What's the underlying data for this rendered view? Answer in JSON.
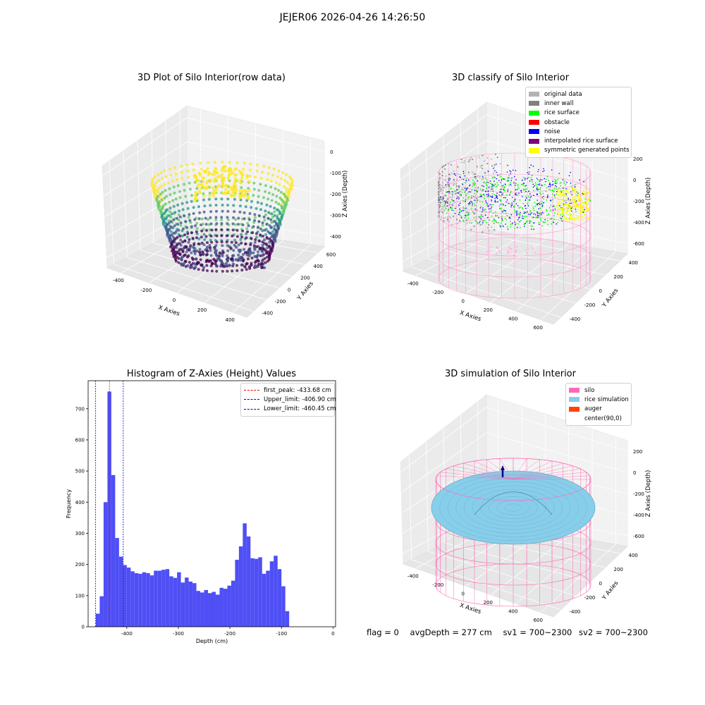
{
  "suptitle": "JEJER06 2026-04-26 14:26:50",
  "footer": {
    "flag": "flag = 0",
    "avg_depth": "avgDepth = 277 cm",
    "sv1": "sv1 = 700~2300",
    "sv2": "sv2 = 700~2300"
  },
  "chart_data": [
    {
      "type": "scatter",
      "title": "3D Plot of Silo Interior(row data)",
      "xlabel": "X Axies",
      "ylabel": "Y Axies",
      "zlabel": "Z Axies (Depth)",
      "x_ticks": [
        "-400",
        "-200",
        "0",
        "200",
        "400"
      ],
      "y_ticks": [
        "-400",
        "-200",
        "0",
        "200",
        "400",
        "600"
      ],
      "z_ticks": [
        "-400",
        "-300",
        "-200",
        "-100",
        "0"
      ],
      "colormap": "viridis",
      "colors": [
        "#440154",
        "#3b528b",
        "#21918c",
        "#5ec962",
        "#fde725"
      ]
    },
    {
      "type": "scatter",
      "title": "3D classify of Silo Interior",
      "xlabel": "X Axies",
      "ylabel": "Y Axies",
      "zlabel": "Z Axies (Depth)",
      "x_ticks": [
        "-400",
        "-200",
        "0",
        "200",
        "400",
        "600"
      ],
      "y_ticks": [
        "-400",
        "-200",
        "0",
        "200",
        "400"
      ],
      "z_ticks": [
        "-600",
        "-400",
        "-200",
        "0",
        "200"
      ],
      "legend": [
        {
          "label": "original data",
          "color": "#b4b4b4"
        },
        {
          "label": "inner wall",
          "color": "#808080"
        },
        {
          "label": "rice surface",
          "color": "#00ff00"
        },
        {
          "label": "obstacle",
          "color": "#ff0000"
        },
        {
          "label": "noise",
          "color": "#0000ff"
        },
        {
          "label": "interpolated rice surface",
          "color": "#800080"
        },
        {
          "label": "symmetric generated points",
          "color": "#ffff00"
        }
      ],
      "legend_position": "top-right"
    },
    {
      "type": "bar",
      "title": "Histogram of Z-Axies (Height) Values",
      "xlabel": "Depth (cm)",
      "ylabel": "Frequency",
      "x_ticks": [
        -400,
        -300,
        -200,
        -100,
        0
      ],
      "y_ticks": [
        0,
        100,
        200,
        300,
        400,
        500,
        600,
        700
      ],
      "xlim": [
        -475,
        5
      ],
      "ylim": [
        0,
        790
      ],
      "bin_start": -460,
      "bin_width": 7.5,
      "values": [
        42,
        98,
        400,
        755,
        487,
        285,
        225,
        198,
        190,
        178,
        172,
        170,
        175,
        172,
        165,
        180,
        180,
        183,
        185,
        162,
        157,
        175,
        142,
        158,
        145,
        140,
        115,
        110,
        118,
        108,
        112,
        103,
        125,
        122,
        132,
        148,
        215,
        258,
        332,
        290,
        220,
        218,
        223,
        170,
        180,
        210,
        228,
        185,
        130,
        50
      ],
      "bar_color": "#4f4ff5",
      "vlines": [
        {
          "label": "first_peak: -433.68 cm",
          "x": -433.68,
          "color": "#ff0000"
        },
        {
          "label": "Upper_limit: -406.90 cm",
          "x": -406.9,
          "color": "#0000cc"
        },
        {
          "label": "Lower_limit: -460.45 cm",
          "x": -460.45,
          "color": "#0000cc"
        }
      ],
      "legend_position": "top-right"
    },
    {
      "type": "other",
      "title": "3D simulation of Silo Interior",
      "xlabel": "X Axies",
      "ylabel": "Y Axies",
      "zlabel": "Z Axies (Depth)",
      "x_ticks": [
        "-400",
        "-200",
        "0",
        "200",
        "400",
        "600"
      ],
      "y_ticks": [
        "-400",
        "-200",
        "0",
        "200",
        "400"
      ],
      "z_ticks": [
        "-600",
        "-400",
        "-200",
        "0",
        "200"
      ],
      "legend": [
        {
          "label": "silo",
          "color": "#ff69b4"
        },
        {
          "label": "rice simulation",
          "color": "#87ceeb"
        },
        {
          "label": "auger",
          "color": "#ff4500"
        },
        {
          "label": "center(90,0)",
          "color": ""
        }
      ],
      "legend_position": "top-right"
    }
  ]
}
